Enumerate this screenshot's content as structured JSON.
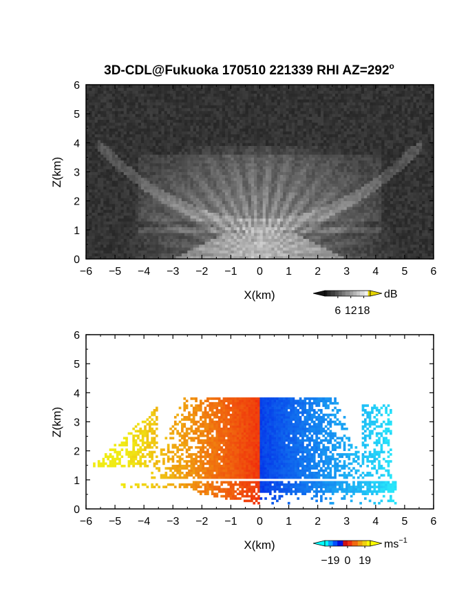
{
  "title": {
    "main": "3D-CDL@Fukuoka 170510 221339 RHI AZ=292",
    "sup": "o"
  },
  "chart_data": [
    {
      "type": "heatmap",
      "name": "reflectivity",
      "xlabel": "X(km)",
      "ylabel": "Z(km)",
      "xlim": [
        -6,
        6
      ],
      "ylim": [
        0,
        6
      ],
      "xticks": [
        -6,
        -5,
        -4,
        -3,
        -2,
        -1,
        0,
        1,
        2,
        3,
        4,
        5,
        6
      ],
      "yticks": [
        0,
        1,
        2,
        3,
        4,
        5,
        6
      ],
      "grid": false,
      "colorbar": {
        "unit": "dB",
        "ticks": [
          6,
          12,
          18
        ],
        "range": [
          0,
          21
        ],
        "colormap": "grayscale",
        "overflow_color": "#e6d400"
      }
    },
    {
      "type": "heatmap",
      "name": "doppler-velocity",
      "xlabel": "X(km)",
      "ylabel": "Z(km)",
      "xlim": [
        -6,
        6
      ],
      "ylim": [
        0,
        6
      ],
      "xticks": [
        -6,
        -5,
        -4,
        -3,
        -2,
        -1,
        0,
        1,
        2,
        3,
        4,
        5,
        6
      ],
      "yticks": [
        0,
        1,
        2,
        3,
        4,
        5,
        6
      ],
      "grid": false,
      "colorbar": {
        "unit": "ms",
        "unit_sup": "−1",
        "ticks": [
          -19,
          0,
          19
        ],
        "tick_labels": [
          "−19",
          "0",
          "19"
        ],
        "range": [
          -25,
          25
        ],
        "colormap": "cyan-blue-red-yellow"
      }
    }
  ]
}
